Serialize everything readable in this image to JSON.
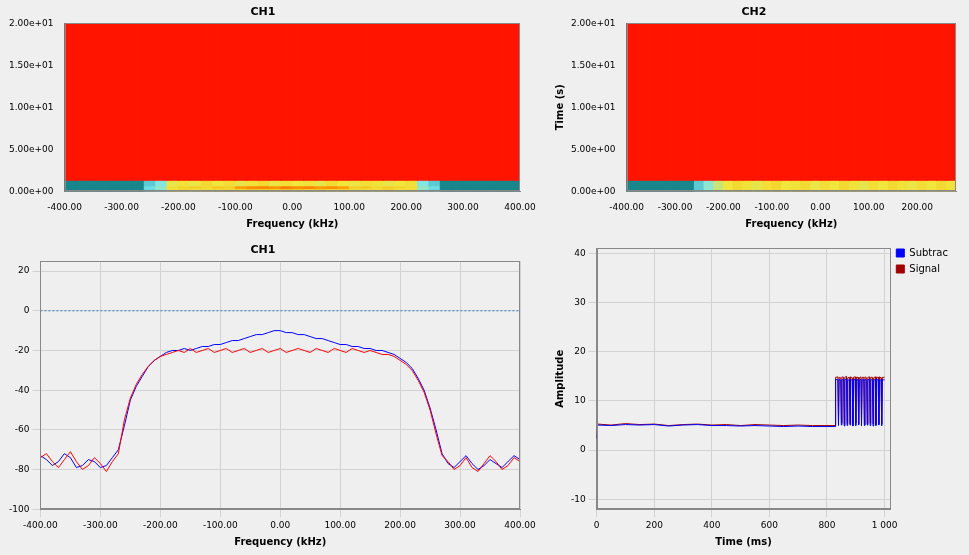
{
  "chart_data": [
    {
      "type": "heatmap",
      "title": "CH1",
      "x_label": "Frequency (kHz)",
      "xlim": [
        -400,
        400
      ],
      "xticks": [
        {
          "value": -400,
          "label": "-400.00"
        },
        {
          "value": -300,
          "label": "-300.00"
        },
        {
          "value": -200,
          "label": "-200.00"
        },
        {
          "value": -100,
          "label": "-100.00"
        },
        {
          "value": 0,
          "label": "0.00"
        },
        {
          "value": 100,
          "label": "100.00"
        },
        {
          "value": 200,
          "label": "200.00"
        },
        {
          "value": 300,
          "label": "300.00"
        },
        {
          "value": 400,
          "label": "400.00"
        }
      ],
      "ylim": [
        0,
        20
      ],
      "yticks": [
        {
          "value": 0,
          "label": "0.00e+00"
        },
        {
          "value": 5,
          "label": "5.00e+00"
        },
        {
          "value": 10,
          "label": "1.00e+01"
        },
        {
          "value": 15,
          "label": "1.50e+01"
        },
        {
          "value": 20,
          "label": "2.00e+01"
        }
      ],
      "grid": false,
      "x_edges": [
        -400,
        -380,
        -360,
        -340,
        -320,
        -300,
        -280,
        -260,
        -240,
        -220,
        -200,
        -180,
        -160,
        -140,
        -120,
        -100,
        -80,
        -60,
        -40,
        -20,
        0,
        20,
        40,
        60,
        80,
        100,
        120,
        140,
        160,
        180,
        200,
        220,
        240,
        260,
        280,
        300,
        320,
        340,
        360,
        380,
        400
      ],
      "y_edges": [
        0,
        0.3,
        0.65,
        1.3,
        20
      ],
      "cells": [
        [
          -80,
          -80,
          -80,
          -80,
          -80,
          -80,
          -80,
          -64,
          -56,
          -36,
          -33,
          -37,
          -34,
          -35,
          -32,
          -36,
          -33,
          -35,
          -34,
          -31,
          -33,
          -35,
          -32,
          -36,
          -34,
          -33,
          -37,
          -35,
          -32,
          -36,
          -34,
          -56,
          -64,
          -80,
          -80,
          -80,
          -80,
          -80,
          -80,
          -80
        ],
        [
          -80,
          -80,
          -80,
          -80,
          -80,
          -80,
          -80,
          -62,
          -54,
          -34,
          -32,
          -30,
          -33,
          -29,
          -31,
          -18,
          -15,
          -14,
          -16,
          -13,
          -15,
          -14,
          -17,
          -15,
          -19,
          -31,
          -29,
          -33,
          -30,
          -32,
          -34,
          -54,
          -62,
          -80,
          -80,
          -80,
          -80,
          -80,
          -80,
          -80
        ],
        [
          -80,
          -80,
          -80,
          -80,
          -80,
          -80,
          -80,
          -66,
          -58,
          -38,
          -35,
          -37,
          -33,
          -36,
          -34,
          -38,
          -35,
          -33,
          -37,
          -34,
          -36,
          -35,
          -38,
          -33,
          -36,
          -37,
          -34,
          -35,
          -38,
          -36,
          -34,
          -58,
          -66,
          -80,
          -80,
          -80,
          -80,
          -80,
          -80,
          -80
        ],
        [
          0,
          0,
          0,
          0,
          0,
          0,
          0,
          0,
          0,
          0,
          0,
          0,
          0,
          0,
          0,
          0,
          0,
          0,
          0,
          0,
          0,
          0,
          0,
          0,
          0,
          0,
          0,
          0,
          0,
          0,
          0,
          0,
          0,
          0,
          0,
          0,
          0,
          0,
          0,
          0
        ]
      ]
    },
    {
      "type": "heatmap",
      "title": "CH2",
      "x_label": "Frequency (kHz)",
      "y_label": "Time (s)",
      "xlim": [
        -400,
        280
      ],
      "xticks": [
        {
          "value": -400,
          "label": "-400.00"
        },
        {
          "value": -300,
          "label": "-300.00"
        },
        {
          "value": -200,
          "label": "-200.00"
        },
        {
          "value": -100,
          "label": "-100.00"
        },
        {
          "value": 0,
          "label": "0.00"
        },
        {
          "value": 100,
          "label": "100.00"
        },
        {
          "value": 200,
          "label": "200.00"
        }
      ],
      "ylim": [
        0,
        20
      ],
      "yticks": [
        {
          "value": 0,
          "label": "0.00e+00"
        },
        {
          "value": 5,
          "label": "5.00e+00"
        },
        {
          "value": 10,
          "label": "1.00e+01"
        },
        {
          "value": 15,
          "label": "1.50e+01"
        },
        {
          "value": 20,
          "label": "2.00e+01"
        }
      ],
      "grid": false,
      "x_edges": [
        -400,
        -380,
        -360,
        -340,
        -320,
        -300,
        -280,
        -260,
        -240,
        -220,
        -200,
        -180,
        -160,
        -140,
        -120,
        -100,
        -80,
        -60,
        -40,
        -20,
        0,
        20,
        40,
        60,
        80,
        100,
        120,
        140,
        160,
        180,
        200,
        220,
        240,
        260,
        280
      ],
      "y_edges": [
        0,
        1.3,
        20
      ],
      "cells": [
        [
          -80,
          -80,
          -80,
          -80,
          -80,
          -80,
          -80,
          -66,
          -56,
          -44,
          -36,
          -33,
          -35,
          -38,
          -34,
          -32,
          -36,
          -35,
          -33,
          -37,
          -34,
          -36,
          -33,
          -35,
          -38,
          -34,
          -36,
          -33,
          -35,
          -37,
          -34,
          -36,
          -33,
          -35
        ],
        [
          0,
          0,
          0,
          0,
          0,
          0,
          0,
          0,
          0,
          0,
          0,
          0,
          0,
          0,
          0,
          0,
          0,
          0,
          0,
          0,
          0,
          0,
          0,
          0,
          0,
          0,
          0,
          0,
          0,
          0,
          0,
          0,
          0,
          0
        ]
      ]
    },
    {
      "type": "line",
      "title": "CH1",
      "x_label": "Frequency (kHz)",
      "xlim": [
        -400,
        400
      ],
      "xticks": [
        {
          "value": -400,
          "label": "-400.00"
        },
        {
          "value": -300,
          "label": "-300.00"
        },
        {
          "value": -200,
          "label": "-200.00"
        },
        {
          "value": -100,
          "label": "-100.00"
        },
        {
          "value": 0,
          "label": "0.00"
        },
        {
          "value": 100,
          "label": "100.00"
        },
        {
          "value": 200,
          "label": "200.00"
        },
        {
          "value": 300,
          "label": "300.00"
        },
        {
          "value": 400,
          "label": "400.00"
        }
      ],
      "ylim": [
        -100,
        25
      ],
      "yticks": [
        -100,
        -80,
        -60,
        -40,
        -20,
        0,
        20
      ],
      "grid": true,
      "reference_y": [
        0
      ],
      "x": [
        -400,
        -390,
        -380,
        -370,
        -360,
        -350,
        -340,
        -330,
        -320,
        -310,
        -300,
        -290,
        -280,
        -270,
        -260,
        -250,
        -240,
        -230,
        -220,
        -210,
        -200,
        -190,
        -180,
        -170,
        -160,
        -150,
        -140,
        -130,
        -120,
        -110,
        -100,
        -90,
        -80,
        -70,
        -60,
        -50,
        -40,
        -30,
        -20,
        -10,
        0,
        10,
        20,
        30,
        40,
        50,
        60,
        70,
        80,
        90,
        100,
        110,
        120,
        130,
        140,
        150,
        160,
        170,
        180,
        190,
        200,
        210,
        220,
        230,
        240,
        250,
        260,
        270,
        280,
        290,
        300,
        310,
        320,
        330,
        340,
        350,
        360,
        370,
        380,
        390,
        400
      ],
      "series": [
        {
          "color": "#ff0000",
          "values": [
            -74,
            -72,
            -76,
            -79,
            -75,
            -71,
            -76,
            -80,
            -78,
            -74,
            -77,
            -81,
            -76,
            -72,
            -55,
            -44,
            -37,
            -32,
            -28,
            -25,
            -23,
            -22,
            -21,
            -20,
            -21,
            -19,
            -21,
            -20,
            -19,
            -21,
            -20,
            -19,
            -21,
            -20,
            -19,
            -21,
            -20,
            -19,
            -21,
            -20,
            -19,
            -21,
            -20,
            -19,
            -20,
            -21,
            -19,
            -20,
            -21,
            -19,
            -20,
            -21,
            -19,
            -20,
            -21,
            -20,
            -21,
            -22,
            -22,
            -23,
            -25,
            -27,
            -30,
            -35,
            -41,
            -50,
            -62,
            -73,
            -76,
            -80,
            -78,
            -74,
            -79,
            -81,
            -77,
            -73,
            -76,
            -80,
            -78,
            -74,
            -76
          ]
        },
        {
          "color": "#0000ff",
          "values": [
            -73,
            -75,
            -78,
            -76,
            -72,
            -74,
            -79,
            -78,
            -75,
            -76,
            -79,
            -78,
            -74,
            -70,
            -58,
            -45,
            -38,
            -33,
            -28,
            -25,
            -23,
            -21,
            -20,
            -20,
            -19,
            -20,
            -19,
            -18,
            -18,
            -17,
            -17,
            -16,
            -15,
            -15,
            -14,
            -13,
            -12,
            -12,
            -11,
            -10,
            -10,
            -11,
            -11,
            -12,
            -12,
            -13,
            -14,
            -14,
            -15,
            -16,
            -17,
            -17,
            -18,
            -18,
            -19,
            -19,
            -20,
            -20,
            -21,
            -22,
            -24,
            -26,
            -29,
            -34,
            -40,
            -49,
            -60,
            -72,
            -77,
            -79,
            -76,
            -73,
            -77,
            -80,
            -78,
            -75,
            -77,
            -79,
            -76,
            -73,
            -75
          ]
        }
      ]
    },
    {
      "type": "line",
      "x_label": "Time (ms)",
      "y_label": "Amplitude",
      "xlim": [
        0,
        1020
      ],
      "xticks": [
        0,
        200,
        400,
        600,
        800,
        {
          "value": 1000,
          "label": "1 000"
        }
      ],
      "ylim": [
        -12,
        41
      ],
      "yticks": [
        -10,
        0,
        10,
        20,
        30,
        40
      ],
      "grid": true,
      "legend": "right",
      "x": [
        0,
        3,
        50,
        100,
        150,
        200,
        250,
        300,
        350,
        400,
        450,
        500,
        550,
        600,
        650,
        700,
        750,
        800,
        828,
        830,
        838,
        840,
        842,
        848,
        850,
        852,
        858,
        860,
        862,
        868,
        870,
        872,
        878,
        880,
        882,
        888,
        890,
        892,
        898,
        900,
        902,
        908,
        910,
        912,
        918,
        920,
        922,
        928,
        930,
        932,
        938,
        940,
        942,
        948,
        950,
        952,
        958,
        960,
        962,
        968,
        970,
        972,
        978,
        980,
        982,
        988,
        990,
        992,
        1000
      ],
      "series": [
        {
          "name": "Subtrac",
          "color": "#0000ff",
          "values": [
            2.2,
            5.1,
            5.0,
            5.2,
            5.1,
            5.2,
            4.9,
            5.1,
            5.2,
            5.0,
            5.0,
            4.9,
            5.0,
            4.9,
            4.8,
            4.9,
            4.8,
            4.8,
            4.8,
            14.4,
            14.3,
            5.0,
            14.4,
            14.2,
            5.1,
            14.3,
            14.4,
            4.9,
            14.3,
            14.5,
            5.0,
            14.2,
            14.3,
            5.1,
            14.4,
            14.2,
            4.9,
            14.3,
            14.4,
            5.0,
            14.3,
            14.3,
            5.1,
            14.2,
            14.4,
            4.9,
            14.3,
            14.3,
            5.0,
            14.4,
            14.2,
            5.1,
            14.3,
            14.4,
            5.0,
            14.3,
            14.3,
            4.9,
            14.2,
            14.4,
            5.0,
            14.3,
            14.3,
            5.1,
            14.4,
            14.2,
            5.0,
            14.3,
            14.3
          ]
        },
        {
          "name": "Signal",
          "color": "#a00000",
          "values": [
            2.5,
            5.3,
            5.1,
            5.4,
            5.2,
            5.3,
            5.0,
            5.2,
            5.3,
            5.1,
            5.2,
            5.0,
            5.2,
            5.1,
            5.0,
            5.1,
            5.0,
            5.0,
            5.0,
            14.8,
            14.9,
            5.3,
            14.8,
            14.7,
            5.5,
            14.9,
            14.8,
            5.2,
            14.8,
            15.0,
            5.4,
            14.7,
            14.8,
            5.3,
            14.9,
            14.7,
            5.2,
            14.8,
            14.9,
            5.5,
            14.8,
            14.8,
            5.3,
            14.7,
            14.9,
            5.4,
            14.8,
            14.8,
            5.2,
            14.9,
            14.7,
            5.3,
            14.8,
            14.9,
            5.5,
            14.8,
            14.8,
            5.3,
            14.7,
            14.9,
            5.2,
            14.8,
            14.8,
            5.4,
            14.9,
            14.7,
            5.3,
            14.8,
            14.8
          ]
        }
      ]
    }
  ]
}
